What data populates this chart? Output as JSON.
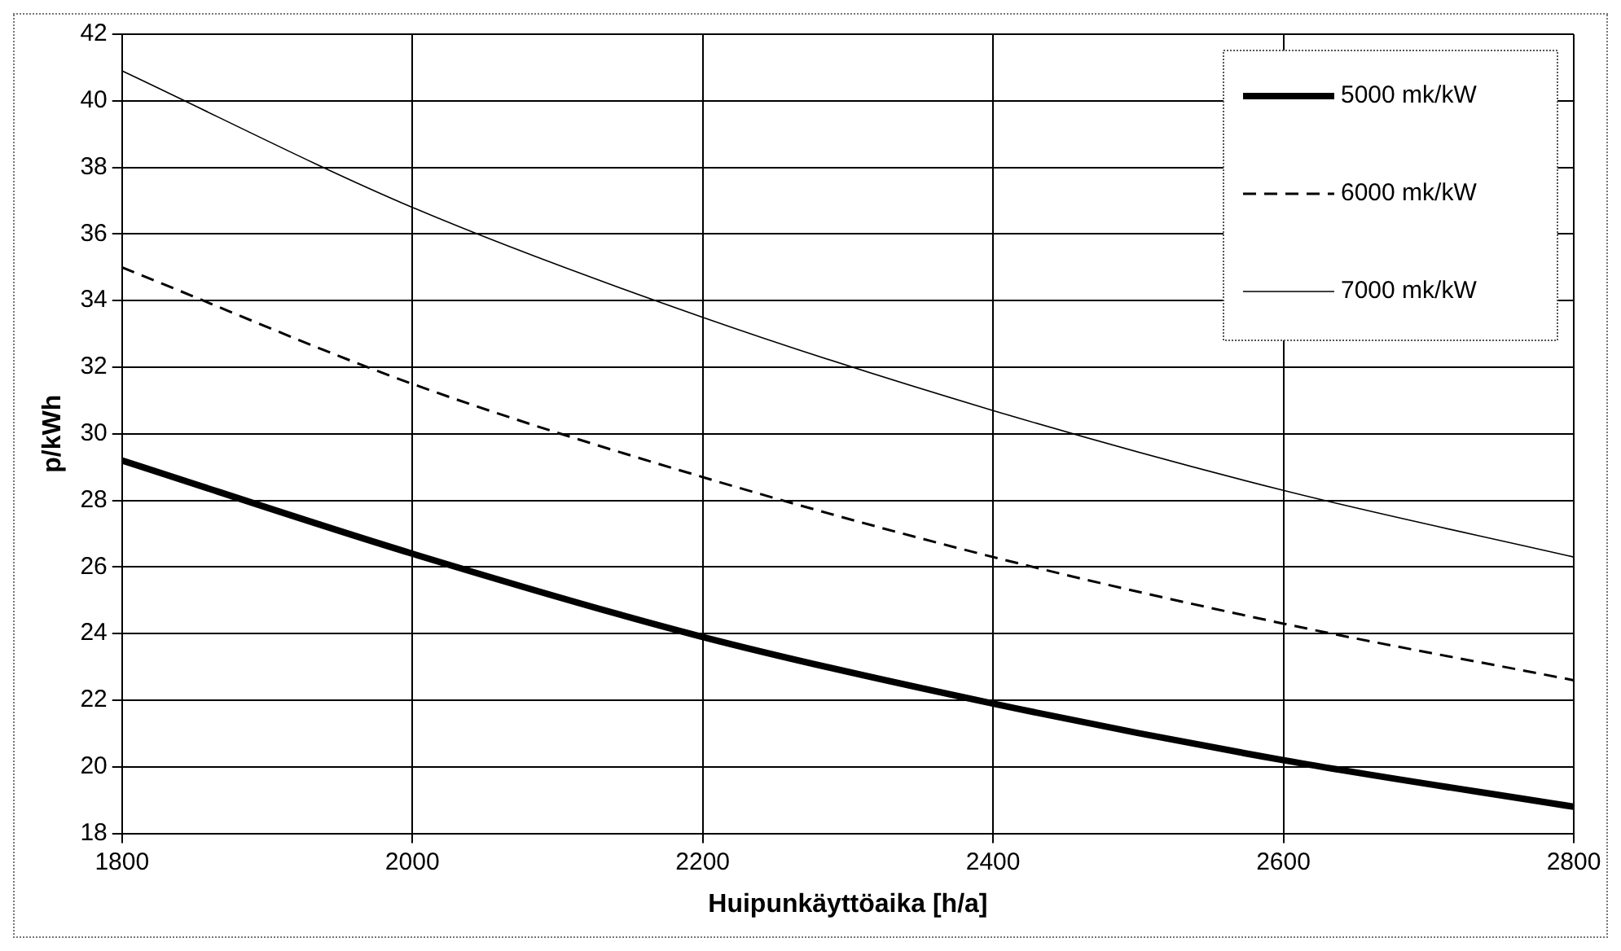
{
  "chart_data": {
    "type": "line",
    "xlabel": "Huipunkäyttöaika [h/a]",
    "ylabel": "p/kWh",
    "x": [
      1800,
      2000,
      2200,
      2400,
      2600,
      2800
    ],
    "series": [
      {
        "name": "5000 mk/kW",
        "color": "#000000",
        "line_style": "solid",
        "values": [
          29.2,
          26.4,
          23.9,
          21.9,
          20.2,
          18.8
        ]
      },
      {
        "name": "6000 mk/kW",
        "color": "#000000",
        "line_style": "dashed",
        "values": [
          35.0,
          31.5,
          28.7,
          26.3,
          24.3,
          22.6
        ]
      },
      {
        "name": "7000 mk/kW",
        "color": "#000000",
        "line_style": "solid",
        "values": [
          40.9,
          36.8,
          33.5,
          30.7,
          28.3,
          26.3
        ]
      }
    ],
    "xlim": [
      1800,
      2800
    ],
    "xticks": [
      1800,
      2000,
      2200,
      2400,
      2600,
      2800
    ],
    "ylim": [
      18,
      42
    ],
    "yticks": [
      18,
      20,
      22,
      24,
      26,
      28,
      30,
      32,
      34,
      36,
      38,
      40,
      42
    ],
    "grid": true,
    "legend": "top right",
    "marker": "none"
  }
}
